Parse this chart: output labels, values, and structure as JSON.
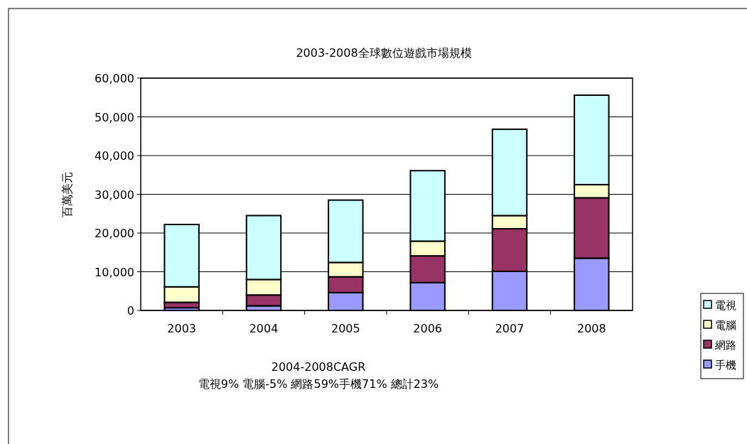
{
  "chart_data": {
    "type": "bar",
    "stacked": true,
    "title": "2003-2008全球數位遊戲市場規模",
    "ylabel": "百萬美元",
    "categories": [
      "2003",
      "2004",
      "2005",
      "2006",
      "2007",
      "2008"
    ],
    "series": [
      {
        "name": "手機",
        "color": "#9999ff",
        "values": [
          700,
          1200,
          4600,
          7200,
          10100,
          13500
        ]
      },
      {
        "name": "網路",
        "color": "#993366",
        "values": [
          1400,
          2800,
          4100,
          6900,
          11000,
          15600
        ]
      },
      {
        "name": "電腦",
        "color": "#ffffcc",
        "values": [
          4000,
          4000,
          3700,
          3800,
          3400,
          3400
        ]
      },
      {
        "name": "電視",
        "color": "#ccffff",
        "values": [
          16100,
          16500,
          16100,
          18200,
          22300,
          23100
        ]
      }
    ],
    "ylim": [
      0,
      60000
    ],
    "yticks": [
      0,
      {
        "value": 10000,
        "label": "10,000"
      },
      {
        "value": 20000,
        "label": "20,000"
      },
      {
        "value": 30000,
        "label": "30,000"
      },
      {
        "value": 40000,
        "label": "40,000"
      },
      {
        "value": 50000,
        "label": "50,000"
      },
      {
        "value": 60000,
        "label": "60,000"
      }
    ],
    "grid": "y",
    "legend": "right",
    "annotations": [
      "2004-2008CAGR",
      "電視9% 電腦-5% 網路59%手機71% 總計23%"
    ]
  }
}
